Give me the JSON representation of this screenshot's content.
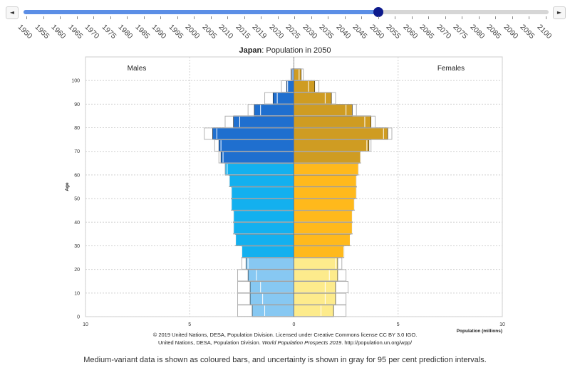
{
  "slider": {
    "prev_label": "◄",
    "next_label": "►",
    "years": [
      "1950",
      "1955",
      "1960",
      "1965",
      "1970",
      "1975",
      "1980",
      "1985",
      "1990",
      "1995",
      "2000",
      "2005",
      "2010",
      "2015",
      "2019",
      "2020",
      "2025",
      "2030",
      "2035",
      "2040",
      "2045",
      "2050",
      "2055",
      "2060",
      "2065",
      "2070",
      "2075",
      "2080",
      "2085",
      "2090",
      "2095",
      "2100"
    ],
    "selected_year": "2050"
  },
  "title_country": "Japan",
  "title_rest": ": Population in 2050",
  "footer": {
    "line1": "© 2019 United Nations, DESA, Population Division. Licensed under Creative Commons license CC BY 3.0 IGO.",
    "line2_pre": "United Nations, DESA, Population Division. ",
    "line2_italic": "World Population Prospects 2019",
    "line2_post": ". http://population.un.org/wpp/"
  },
  "note": "Medium-variant data is shown as coloured bars, and uncertainty is shown in gray for 95 per cent prediction intervals.",
  "colors": {
    "male_young": "#87c8f2",
    "male_working": "#13b0ef",
    "male_old": "#1f6fcf",
    "female_young": "#fdeb8c",
    "female_working": "#ffb91c",
    "female_old": "#cf9c22",
    "uncertainty": "#b3b3b3"
  },
  "chart_data": {
    "type": "bar",
    "orientation": "horizontal-population-pyramid",
    "title": "Japan: Population in 2050",
    "xlabel": "Population (millions)",
    "ylabel": "Age",
    "xlim": [
      -10,
      10
    ],
    "x_ticks": [
      "10",
      "5",
      "0",
      "5",
      "10"
    ],
    "y_ticks": [
      "0",
      "10",
      "20",
      "30",
      "40",
      "50",
      "60",
      "70",
      "80",
      "90",
      "100"
    ],
    "age_groups": [
      "0-4",
      "5-9",
      "10-14",
      "15-19",
      "20-24",
      "25-29",
      "30-34",
      "35-39",
      "40-44",
      "45-49",
      "50-54",
      "55-59",
      "60-64",
      "65-69",
      "70-74",
      "75-79",
      "80-84",
      "85-89",
      "90-94",
      "95-99",
      "100+"
    ],
    "series": [
      {
        "name": "Males",
        "values": [
          2.0,
          2.1,
          2.1,
          2.2,
          2.3,
          2.5,
          2.8,
          2.9,
          2.9,
          3.0,
          3.0,
          3.1,
          3.3,
          3.5,
          3.6,
          3.9,
          2.9,
          1.9,
          1.0,
          0.35,
          0.1
        ],
        "lower": [
          1.4,
          1.5,
          1.6,
          1.8,
          2.2,
          2.5,
          2.8,
          2.9,
          2.9,
          3.0,
          3.0,
          3.1,
          3.2,
          3.4,
          3.5,
          3.7,
          2.6,
          1.6,
          0.8,
          0.3,
          0.05
        ],
        "upper": [
          2.7,
          2.7,
          2.7,
          2.7,
          2.5,
          2.5,
          2.8,
          2.9,
          2.9,
          3.0,
          3.0,
          3.1,
          3.3,
          3.6,
          3.8,
          4.3,
          3.3,
          2.2,
          1.4,
          0.6,
          0.15
        ]
      },
      {
        "name": "Females",
        "values": [
          1.9,
          2.0,
          2.0,
          2.1,
          2.1,
          2.4,
          2.7,
          2.8,
          2.8,
          2.9,
          3.0,
          3.0,
          3.1,
          3.2,
          3.6,
          4.5,
          3.7,
          2.8,
          1.8,
          1.0,
          0.35
        ],
        "lower": [
          1.3,
          1.5,
          1.5,
          1.7,
          2.0,
          2.4,
          2.7,
          2.8,
          2.8,
          2.9,
          3.0,
          3.0,
          3.1,
          3.2,
          3.5,
          4.3,
          3.4,
          2.5,
          1.5,
          0.7,
          0.25
        ],
        "upper": [
          2.5,
          2.5,
          2.6,
          2.5,
          2.3,
          2.4,
          2.7,
          2.8,
          2.8,
          2.9,
          3.0,
          3.0,
          3.1,
          3.2,
          3.7,
          4.7,
          3.9,
          3.0,
          2.0,
          1.2,
          0.45
        ]
      }
    ]
  }
}
